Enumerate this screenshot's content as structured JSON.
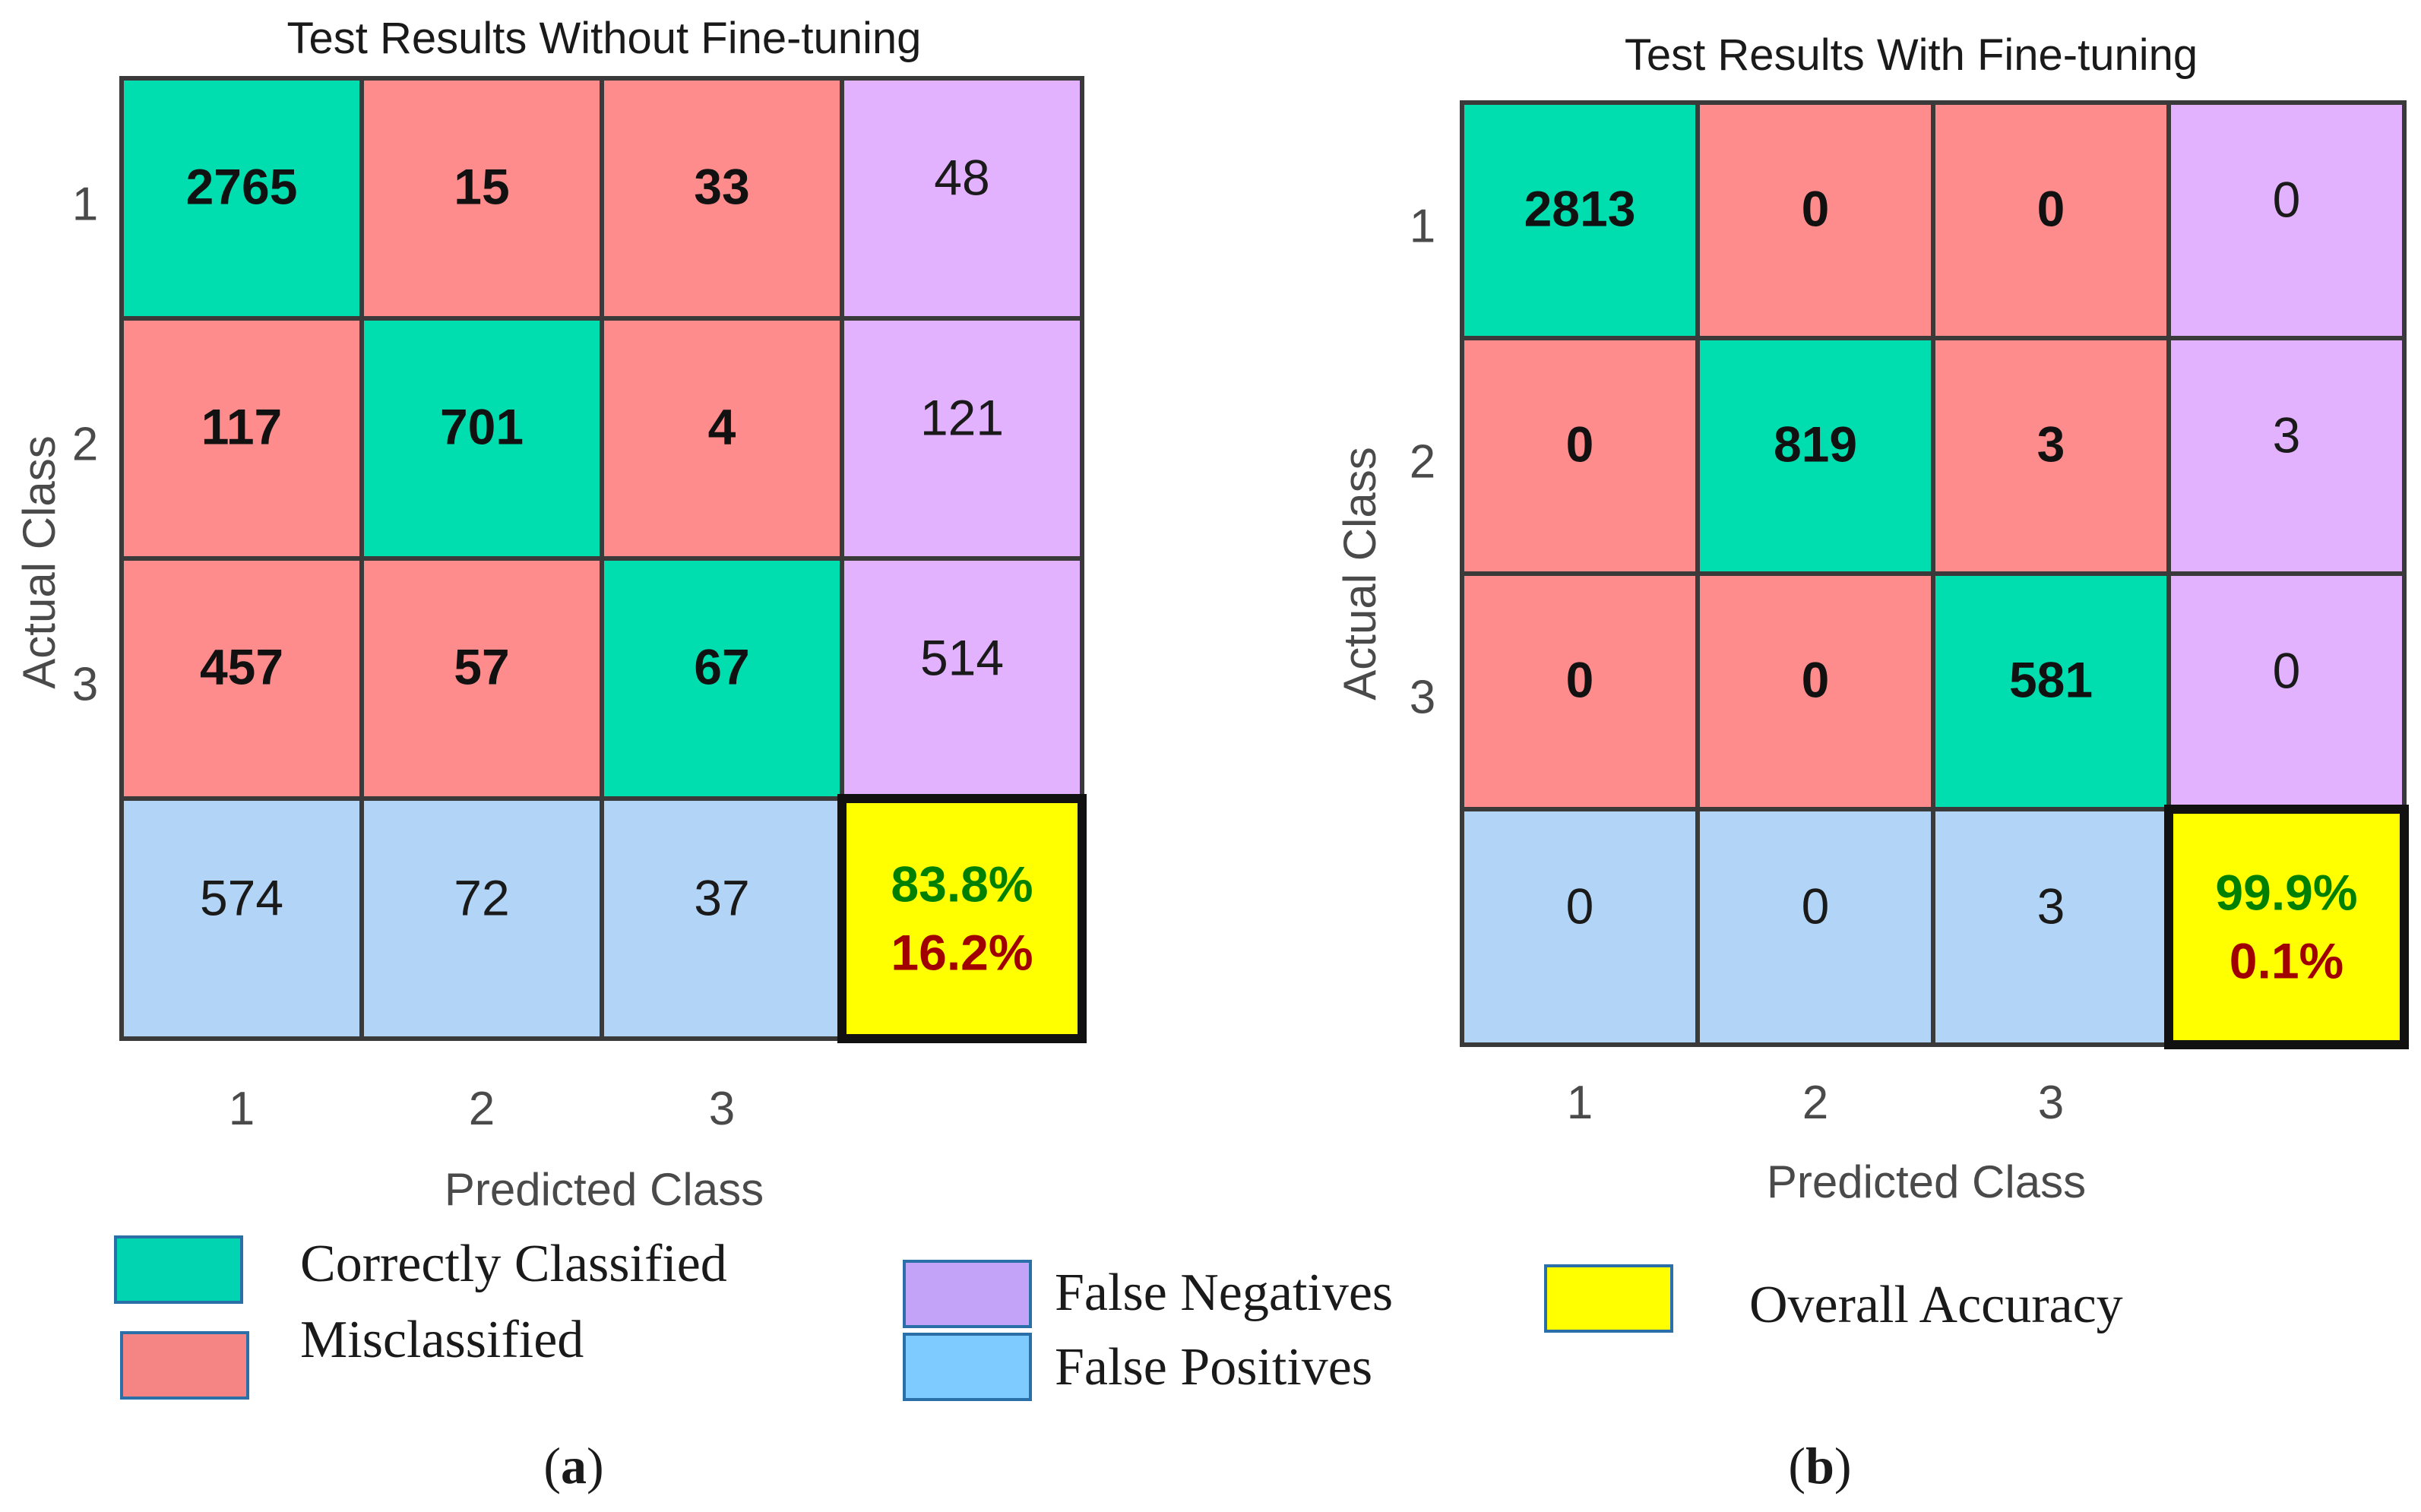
{
  "colors": {
    "correct": "#00DDAF",
    "misclassified": "#FF8C8C",
    "false_negative": "#E2B2FF",
    "false_positive": "#B2D4F6",
    "accuracy": "#FFFF00",
    "accuracy_text": "#008000",
    "error_text": "#A00000",
    "grid_line": "#3A3A3A",
    "text": "#1A1A1A"
  },
  "legend": {
    "correct_label": "Correctly Classified",
    "misclassified_label": "Misclassified",
    "false_negatives_label": "False Negatives",
    "false_positives_label": "False Positives",
    "accuracy_label": "Overall Accuracy",
    "swatch_colors": {
      "correct": "#00D4B0",
      "misclassified": "#F58485",
      "false_negative": "#C2A3F8",
      "false_positive": "#7ECBFF",
      "accuracy": "#FFFF00"
    }
  },
  "chart_data": [
    {
      "type": "table",
      "title": "Test Results Without Fine-tuning",
      "xlabel": "Predicted Class",
      "ylabel": "Actual Class",
      "classes": [
        "1",
        "2",
        "3"
      ],
      "matrix": [
        [
          2765,
          15,
          33
        ],
        [
          117,
          701,
          4
        ],
        [
          457,
          57,
          67
        ]
      ],
      "false_negatives": [
        48,
        121,
        514
      ],
      "false_positives": [
        574,
        72,
        37
      ],
      "accuracy": "83.8%",
      "error": "16.2%",
      "caption_prefix": "(",
      "caption_letter": "a",
      "caption_suffix": ")"
    },
    {
      "type": "table",
      "title": "Test Results With Fine-tuning",
      "xlabel": "Predicted Class",
      "ylabel": "Actual Class",
      "classes": [
        "1",
        "2",
        "3"
      ],
      "matrix": [
        [
          2813,
          0,
          0
        ],
        [
          0,
          819,
          3
        ],
        [
          0,
          0,
          581
        ]
      ],
      "false_negatives": [
        0,
        3,
        0
      ],
      "false_positives": [
        0,
        0,
        3
      ],
      "accuracy": "99.9%",
      "error": "0.1%",
      "caption_prefix": "(",
      "caption_letter": "b",
      "caption_suffix": ")"
    }
  ]
}
